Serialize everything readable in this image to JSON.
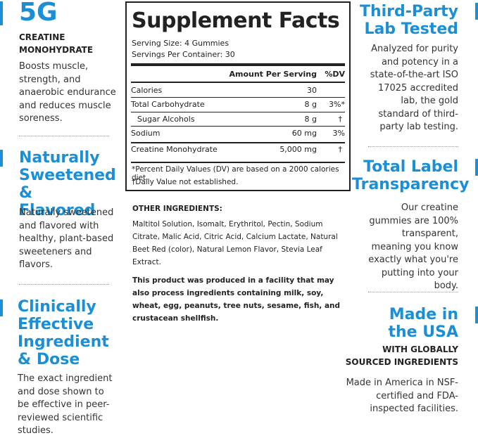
{
  "left": [
    {
      "title": "5G",
      "subtitle": "CREATINE MONOHYDRATE",
      "body": "Boosts muscle, strength, and anaerobic endurance and reduces muscle soreness."
    },
    {
      "title": "Naturally Sweetened & Flavored",
      "body": "Naturally sweetened and flavored with healthy, plant-based sweeteners and flavors."
    },
    {
      "title": "Clinically Effective Ingredient & Dose",
      "body": "The exact ingredient and dose shown to be effective in peer-reviewed scientific studies."
    }
  ],
  "right": [
    {
      "title": "Third-Party Lab Tested",
      "body": "Analyzed for purity and potency in a state-of-the-art ISO 17025 accredited lab, the gold standard of third-party lab testing."
    },
    {
      "title": "Total Label Transparency",
      "body": "Our creatine gummies are 100% transparent, meaning you know exactly what you're putting into your body."
    },
    {
      "title": "Made in the USA",
      "subtitle": "WITH GLOBALLY SOURCED INGREDIENTS",
      "body": "Made in America in NSF-certified and FDA-inspected facilities."
    }
  ],
  "facts": {
    "title": "Supplement Facts",
    "serving_size": "Serving Size: 4 Gummies",
    "servings_per_container": "Servings Per Container: 30",
    "header": [
      "Amount Per Serving",
      "%DV"
    ],
    "rows": [
      [
        "Calories",
        "30",
        ""
      ],
      [
        "Total Carbohydrate",
        "8 g",
        "3%*"
      ],
      [
        "Sugar Alcohols",
        "8 g",
        "†"
      ],
      [
        "Sodium",
        "60 mg",
        "3%"
      ],
      [
        "Creatine Monohydrate",
        "5,000 mg",
        "†"
      ]
    ],
    "footnotes": [
      "*Percent Daily Values (DV) are based on a 2000 calories diet.",
      "†Daily Value not established."
    ]
  },
  "other_ingredients": {
    "heading": "OTHER INGREDIENTS:",
    "text": "Maltitol Solution, Isomalt, Erythritol, Pectin, Sodium Citrate, Malic Acid, Citric Acid, Calcium Lactate, Natural Beet Red (color), Natural Lemon Flavor, Stevia Leaf Extract.",
    "allergen": "This product was produced in a facility that may also process ingredients containing milk, soy, wheat, egg, peanuts, tree nuts, sesame, fish, and crustacean shellfish."
  }
}
